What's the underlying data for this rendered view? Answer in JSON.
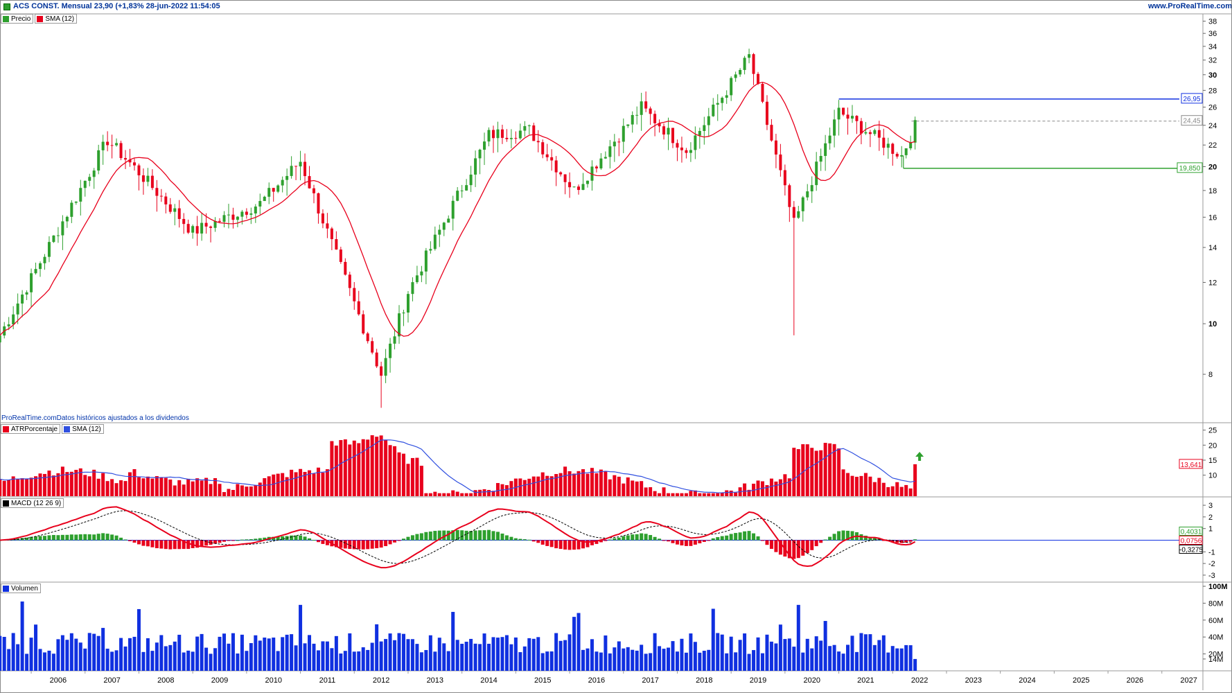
{
  "header": {
    "title": "ACS CONST. Mensual 23,90 (+1,83% 28-jun-2022 11:54:05",
    "website": "www.ProRealTime.com"
  },
  "legends": {
    "price": [
      {
        "label": "Precio",
        "color": "#2ea02e"
      },
      {
        "label": "SMA (12)",
        "color": "#e8001c"
      }
    ],
    "atr": [
      {
        "label": "ATRPorcentaje",
        "color": "#e8001c"
      },
      {
        "label": "SMA (12)",
        "color": "#3050e0"
      }
    ],
    "macd": [
      {
        "label": "MACD (12 26 9)",
        "color": "#000000"
      }
    ],
    "volume": [
      {
        "label": "Volumen",
        "color": "#1030e0"
      }
    ]
  },
  "note": "ProRealTime.comDatos históricos ajustados a los dividendos",
  "colors": {
    "up": "#2ea02e",
    "down": "#e8001c",
    "sma": "#e8001c",
    "atr": "#e8001c",
    "atr_sma": "#3050e0",
    "macd": "#e8001c",
    "signal": "#000000",
    "hist_pos": "#2ea02e",
    "hist_neg": "#e8001c",
    "volume": "#1030e0",
    "resistance": "#1030e0",
    "support": "#2ea02e"
  },
  "chart_data": [
    {
      "type": "candlestick",
      "title": "ACS CONST. Mensual",
      "x_labels": [
        "2006",
        "2007",
        "2008",
        "2009",
        "2010",
        "2011",
        "2012",
        "2013",
        "2014",
        "2015",
        "2016",
        "2017",
        "2018",
        "2019",
        "2020",
        "2021",
        "2022",
        "2023",
        "2024",
        "2025",
        "2026",
        "2027"
      ],
      "y_ticks": [
        8,
        10,
        12,
        14,
        16,
        18,
        20,
        22,
        24,
        26,
        28,
        30,
        32,
        34,
        36,
        38
      ],
      "y_bold_ticks": [
        10,
        20,
        30
      ],
      "ylim": [
        6.5,
        39
      ],
      "y_scale": "log",
      "levels": [
        {
          "label": "26,95",
          "value": 26.95,
          "color": "#1030e0"
        },
        {
          "label": "24,45",
          "value": 24.45,
          "color": "#888888"
        },
        {
          "label": "19,850",
          "value": 19.85,
          "color": "#2ea02e"
        }
      ],
      "key_points": [
        {
          "date": "2005-06",
          "close": 9.5
        },
        {
          "date": "2007-06",
          "close": 22.5
        },
        {
          "date": "2008-01",
          "close": 19.5
        },
        {
          "date": "2009-01",
          "close": 15.0
        },
        {
          "date": "2010-04",
          "close": 17.0
        },
        {
          "date": "2011-01",
          "close": 20.5
        },
        {
          "date": "2012-07",
          "close": 8.0
        },
        {
          "date": "2013-01",
          "close": 11.5
        },
        {
          "date": "2014-07",
          "close": 23.0
        },
        {
          "date": "2015-04",
          "close": 23.5
        },
        {
          "date": "2016-02",
          "close": 18.0
        },
        {
          "date": "2017-05",
          "close": 26.0
        },
        {
          "date": "2018-03",
          "close": 21.5
        },
        {
          "date": "2019-05",
          "close": 32.5
        },
        {
          "date": "2020-03",
          "close": 15.5
        },
        {
          "date": "2021-01",
          "close": 25.5
        },
        {
          "date": "2022-03",
          "close": 21.0
        },
        {
          "date": "2022-06",
          "close": 23.9
        }
      ]
    },
    {
      "type": "bar",
      "title": "ATRPorcentaje",
      "y_ticks": [
        10,
        15,
        20,
        25
      ],
      "ylim": [
        3,
        27
      ],
      "last_value_label": "13,641",
      "peaks": [
        {
          "date": "2012-06",
          "value": 26
        },
        {
          "date": "2020-04",
          "value": 23
        }
      ]
    },
    {
      "type": "line",
      "title": "MACD (12 26 9)",
      "y_ticks": [
        -3,
        -2,
        -1,
        0,
        1,
        2,
        3
      ],
      "ylim": [
        -3.6,
        3.6
      ],
      "value_labels": [
        "0,4031",
        "0,0756",
        "-0,3275"
      ]
    },
    {
      "type": "bar",
      "title": "Volumen",
      "y_ticks": [
        "14M",
        "20M",
        "40M",
        "60M",
        "80M",
        "100M"
      ],
      "ylim": [
        0,
        100
      ]
    }
  ]
}
